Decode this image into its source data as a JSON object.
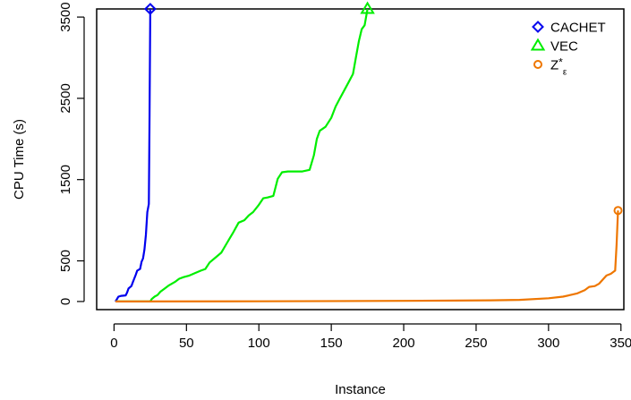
{
  "chart_data": {
    "type": "line",
    "xlabel": "Instance",
    "ylabel": "CPU Time (s)",
    "xlim": [
      -12,
      352
    ],
    "ylim": [
      -100,
      3600
    ],
    "x_ticks": [
      0,
      50,
      100,
      150,
      200,
      250,
      300,
      350
    ],
    "x_tick_labels": [
      "0",
      "50",
      "100",
      "150",
      "200",
      "250",
      "300",
      "350"
    ],
    "y_ticks": [
      0,
      500,
      1500,
      2500,
      3500
    ],
    "y_tick_labels": [
      "0",
      "500",
      "1500",
      "2500",
      "3500"
    ],
    "grid": false,
    "legend_position": "top-right",
    "series": [
      {
        "name": "CACHET",
        "color": "#0000ee",
        "marker": "diamond",
        "points": [
          [
            1,
            0
          ],
          [
            2,
            30
          ],
          [
            3,
            60
          ],
          [
            5,
            70
          ],
          [
            8,
            75
          ],
          [
            9,
            110
          ],
          [
            10,
            160
          ],
          [
            12,
            190
          ],
          [
            13,
            240
          ],
          [
            15,
            330
          ],
          [
            16,
            380
          ],
          [
            18,
            400
          ],
          [
            19,
            490
          ],
          [
            20,
            530
          ],
          [
            21,
            640
          ],
          [
            22,
            820
          ],
          [
            23,
            1100
          ],
          [
            24,
            1200
          ],
          [
            24.5,
            2300
          ],
          [
            25,
            3600
          ]
        ],
        "end_marker": [
          25,
          3600
        ]
      },
      {
        "name": "VEC",
        "color": "#00ee00",
        "marker": "triangle",
        "points": [
          [
            1,
            0
          ],
          [
            25,
            0
          ],
          [
            26,
            30
          ],
          [
            28,
            60
          ],
          [
            30,
            80
          ],
          [
            32,
            120
          ],
          [
            35,
            160
          ],
          [
            38,
            200
          ],
          [
            42,
            240
          ],
          [
            45,
            280
          ],
          [
            48,
            300
          ],
          [
            52,
            320
          ],
          [
            56,
            350
          ],
          [
            60,
            380
          ],
          [
            63,
            400
          ],
          [
            66,
            480
          ],
          [
            70,
            540
          ],
          [
            74,
            600
          ],
          [
            78,
            720
          ],
          [
            82,
            840
          ],
          [
            86,
            970
          ],
          [
            90,
            1000
          ],
          [
            93,
            1060
          ],
          [
            96,
            1100
          ],
          [
            100,
            1190
          ],
          [
            103,
            1270
          ],
          [
            106,
            1280
          ],
          [
            110,
            1300
          ],
          [
            113,
            1510
          ],
          [
            116,
            1590
          ],
          [
            120,
            1600
          ],
          [
            125,
            1600
          ],
          [
            130,
            1600
          ],
          [
            135,
            1620
          ],
          [
            138,
            1800
          ],
          [
            140,
            2000
          ],
          [
            142,
            2100
          ],
          [
            146,
            2150
          ],
          [
            150,
            2260
          ],
          [
            153,
            2400
          ],
          [
            156,
            2500
          ],
          [
            159,
            2600
          ],
          [
            162,
            2700
          ],
          [
            165,
            2800
          ],
          [
            167,
            3000
          ],
          [
            169,
            3200
          ],
          [
            171,
            3350
          ],
          [
            173,
            3400
          ],
          [
            175,
            3600
          ]
        ],
        "end_marker": [
          175,
          3600
        ]
      },
      {
        "name": "Z*ε",
        "color": "#ee7600",
        "marker": "circle",
        "points": [
          [
            1,
            0
          ],
          [
            100,
            2
          ],
          [
            200,
            8
          ],
          [
            260,
            15
          ],
          [
            280,
            20
          ],
          [
            300,
            40
          ],
          [
            310,
            60
          ],
          [
            315,
            80
          ],
          [
            320,
            100
          ],
          [
            325,
            140
          ],
          [
            328,
            180
          ],
          [
            332,
            190
          ],
          [
            335,
            220
          ],
          [
            338,
            280
          ],
          [
            340,
            320
          ],
          [
            343,
            340
          ],
          [
            346,
            380
          ],
          [
            347,
            700
          ],
          [
            348,
            1120
          ]
        ],
        "end_marker": [
          348,
          1120
        ]
      }
    ]
  }
}
